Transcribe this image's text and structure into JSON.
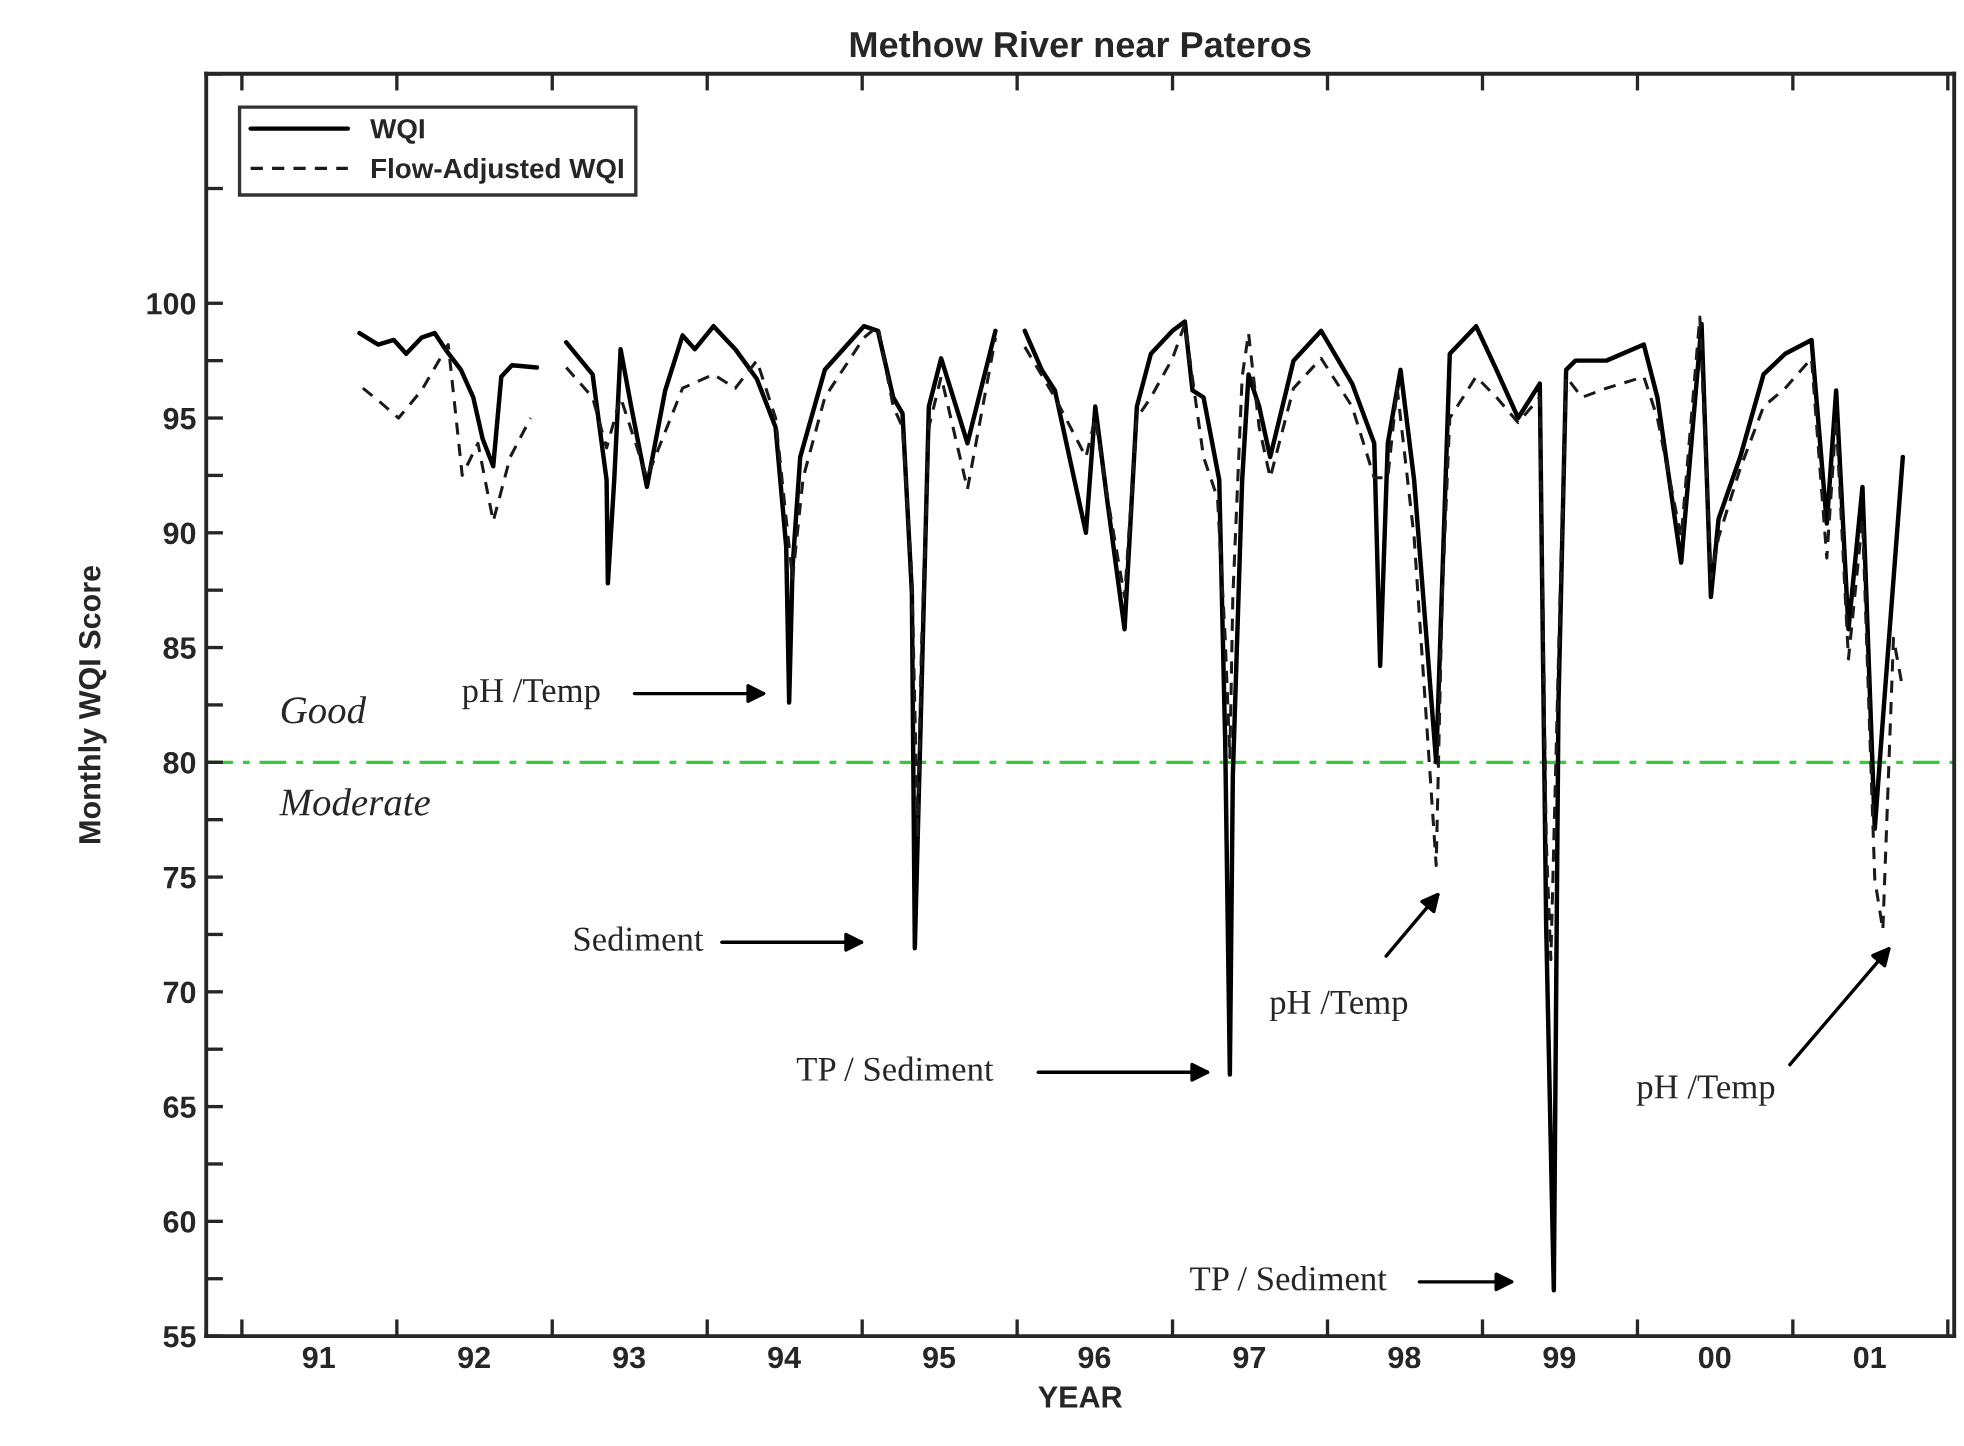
{
  "chart_data": {
    "type": "line",
    "title": "Methow River near Pateros",
    "xlabel": "YEAR",
    "ylabel": "Monthly WQI Score",
    "xlim": [
      "1990-10-09",
      "2002-01-16"
    ],
    "ylim": [
      55,
      110
    ],
    "xticks": [
      {
        "value": "1991-01-01",
        "label": null
      },
      {
        "value": "1991-07-01",
        "label": "91"
      },
      {
        "value": "1992-01-01",
        "label": null
      },
      {
        "value": "1992-07-01",
        "label": "92"
      },
      {
        "value": "1993-01-01",
        "label": null
      },
      {
        "value": "1993-07-01",
        "label": "93"
      },
      {
        "value": "1994-01-01",
        "label": null
      },
      {
        "value": "1994-07-01",
        "label": "94"
      },
      {
        "value": "1995-01-01",
        "label": null
      },
      {
        "value": "1995-07-01",
        "label": "95"
      },
      {
        "value": "1996-01-01",
        "label": null
      },
      {
        "value": "1996-07-01",
        "label": "96"
      },
      {
        "value": "1997-01-01",
        "label": null
      },
      {
        "value": "1997-07-01",
        "label": "97"
      },
      {
        "value": "1998-01-01",
        "label": null
      },
      {
        "value": "1998-07-01",
        "label": "98"
      },
      {
        "value": "1999-01-01",
        "label": null
      },
      {
        "value": "1999-07-01",
        "label": "99"
      },
      {
        "value": "2000-01-01",
        "label": null
      },
      {
        "value": "2000-07-01",
        "label": "00"
      },
      {
        "value": "2001-01-01",
        "label": null
      },
      {
        "value": "2001-07-01",
        "label": "01"
      },
      {
        "value": "2002-01-01",
        "label": null
      }
    ],
    "yticks": [
      55,
      {
        "value": 57.5,
        "label": null
      },
      60,
      {
        "value": 62.5,
        "label": null
      },
      65,
      {
        "value": 67.5,
        "label": null
      },
      70,
      {
        "value": 72.5,
        "label": null
      },
      75,
      {
        "value": 77.5,
        "label": null
      },
      80,
      {
        "value": 82.5,
        "label": null
      },
      85,
      {
        "value": 87.5,
        "label": null
      },
      90,
      {
        "value": 92.5,
        "label": null
      },
      95,
      {
        "value": 97.5,
        "label": null
      },
      100,
      {
        "value": 105,
        "label": null
      },
      {
        "value": 110,
        "label": null
      }
    ],
    "grid": false,
    "legend": "top left",
    "marker": "none",
    "ref_lines": [
      {
        "axis": "y",
        "value": 80,
        "color": "#33cc33",
        "line_style": "dashdot"
      }
    ],
    "annotations": [
      "Good",
      "Moderate",
      "pH /Temp",
      "Sediment",
      "TP / Sediment",
      "pH /Temp",
      "TP / Sediment",
      "pH /Temp"
    ],
    "series": [
      {
        "name": "WQI",
        "color": "#000000",
        "line_style": "solid",
        "x": [
          "1991-10-05",
          "1991-11-18",
          "1991-12-25",
          "1992-01-23",
          "1992-02-28",
          "1992-03-30",
          "1992-04-28",
          "1992-05-31",
          "1992-06-29",
          "1992-07-21",
          "1992-08-15",
          "1992-09-03",
          "1992-09-28",
          "1992-11-26",
          "1992-12-28",
          "1993-02-03",
          "1993-04-06",
          "1993-05-09",
          "1993-05-12",
          "1993-05-27",
          "1993-06-11",
          "1993-07-06",
          "1993-08-12",
          "1993-09-24",
          "1993-11-04",
          "1993-12-03",
          "1994-01-16",
          "1994-03-08",
          "1994-04-28",
          "1994-06-11",
          "1994-07-06",
          "1994-07-13",
          "1994-07-21",
          "1994-08-08",
          "1994-10-05",
          "1995-01-05",
          "1995-02-07",
          "1995-03-15",
          "1995-04-06",
          "1995-04-28",
          "1995-05-05",
          "1995-05-20",
          "1995-06-07",
          "1995-07-06",
          "1995-09-06",
          "1995-11-11",
          "1995-12-14",
          "1996-01-19",
          "1996-02-28",
          "1996-03-30",
          "1996-06-11",
          "1996-07-03",
          "1996-08-01",
          "1996-09-10",
          "1996-10-09",
          "1996-11-11",
          "1997-01-01",
          "1997-01-30",
          "1997-02-17",
          "1997-03-15",
          "1997-04-21",
          "1997-05-05",
          "1997-05-16",
          "1997-05-23",
          "1997-06-14",
          "1997-06-29",
          "1997-07-24",
          "1997-08-19",
          "1997-10-13",
          "1997-12-17",
          "1998-02-28",
          "1998-04-21",
          "1998-05-05",
          "1998-05-23",
          "1998-06-22",
          "1998-07-24",
          "1998-09-14",
          "1998-10-16",
          "1998-12-17",
          "1999-02-03",
          "1999-03-26",
          "1999-05-16",
          "1999-05-31",
          "1999-06-11",
          "1999-06-18",
          "1999-06-29",
          "1999-07-17",
          "1999-08-08",
          "1999-10-20",
          "2000-01-16",
          "2000-02-17",
          "2000-04-13",
          "2000-05-31",
          "2000-06-22",
          "2000-07-10",
          "2000-08-30",
          "2000-10-24",
          "2000-12-14",
          "2001-02-14",
          "2001-03-22",
          "2001-04-13",
          "2001-05-12",
          "2001-06-14",
          "2001-07-13",
          "2001-08-04",
          "2001-09-17"
        ],
        "values": [
          98.7,
          98.2,
          98.4,
          97.8,
          98.5,
          98.7,
          97.9,
          97.1,
          95.9,
          94.1,
          92.9,
          96.8,
          97.3,
          97.2,
          null,
          98.3,
          96.9,
          92.3,
          87.8,
          92.3,
          98.0,
          95.5,
          92.0,
          96.2,
          98.6,
          98.0,
          99.0,
          98.0,
          96.7,
          94.6,
          89.4,
          82.6,
          88.5,
          93.3,
          97.1,
          99.0,
          98.8,
          95.9,
          95.2,
          87.4,
          71.9,
          82.6,
          95.5,
          97.6,
          93.9,
          98.8,
          null,
          98.8,
          97.1,
          96.2,
          90.0,
          95.5,
          91.3,
          85.8,
          95.5,
          97.8,
          98.8,
          99.2,
          96.2,
          95.9,
          92.3,
          80.9,
          66.4,
          79.4,
          92.3,
          96.9,
          95.5,
          93.3,
          97.5,
          98.8,
          96.5,
          93.9,
          84.2,
          93.9,
          97.1,
          92.3,
          80.0,
          97.8,
          99.0,
          97.1,
          95.0,
          96.5,
          72.9,
          63.2,
          57.0,
          82.6,
          97.1,
          97.5,
          97.5,
          98.2,
          95.9,
          88.7,
          99.1,
          87.2,
          90.6,
          93.3,
          96.9,
          97.8,
          98.4,
          90.4,
          96.2,
          85.8,
          92.0,
          77.1,
          82.6,
          93.3
        ]
      },
      {
        "name": "Flow-Adjusted WQI",
        "color": "#1a1a1a",
        "line_style": "dashed",
        "x": [
          "1991-10-13",
          "1991-11-22",
          "1992-01-05",
          "1992-02-28",
          "1992-05-01",
          "1992-06-03",
          "1992-07-10",
          "1992-08-15",
          "1992-09-24",
          "1992-11-11",
          "1992-12-28",
          "1993-02-03",
          "1993-04-06",
          "1993-05-09",
          "1993-06-11",
          "1993-08-12",
          "1993-11-04",
          "1994-01-16",
          "1994-03-08",
          "1994-04-28",
          "1994-06-11",
          "1994-07-06",
          "1994-07-21",
          "1994-08-15",
          "1994-10-05",
          "1995-01-05",
          "1995-02-07",
          "1995-03-15",
          "1995-04-06",
          "1995-04-28",
          "1995-05-12",
          "1995-05-20",
          "1995-06-07",
          "1995-07-06",
          "1995-09-06",
          "1995-11-11",
          "1995-12-14",
          "1996-01-19",
          "1996-03-30",
          "1996-06-11",
          "1996-07-03",
          "1996-08-01",
          "1996-09-10",
          "1996-10-09",
          "1996-11-11",
          "1997-01-01",
          "1997-01-30",
          "1997-03-15",
          "1997-04-17",
          "1997-05-05",
          "1997-05-16",
          "1997-05-23",
          "1997-06-14",
          "1997-06-29",
          "1997-07-24",
          "1997-08-19",
          "1997-10-13",
          "1997-12-17",
          "1998-02-28",
          "1998-04-21",
          "1998-05-23",
          "1998-06-14",
          "1998-07-24",
          "1998-09-14",
          "1998-09-28",
          "1998-10-16",
          "1998-12-17",
          "1999-02-03",
          "1999-03-26",
          "1999-05-16",
          "1999-05-31",
          "1999-06-11",
          "1999-06-29",
          "1999-07-17",
          "1999-08-23",
          "1999-10-20",
          "2000-01-16",
          "2000-02-17",
          "2000-04-13",
          "2000-05-27",
          "2000-06-22",
          "2000-07-10",
          "2000-08-30",
          "2000-10-24",
          "2000-12-14",
          "2001-02-14",
          "2001-03-22",
          "2001-04-13",
          "2001-05-12",
          "2001-06-14",
          "2001-07-13",
          "2001-08-01",
          "2001-08-26",
          "2001-09-17"
        ],
        "values": [
          96.3,
          95.7,
          95.0,
          96.2,
          98.2,
          92.5,
          93.9,
          90.5,
          93.3,
          95.0,
          null,
          97.2,
          95.9,
          93.7,
          95.9,
          92.4,
          96.3,
          96.9,
          96.3,
          97.5,
          95.0,
          90.6,
          88.0,
          92.4,
          95.9,
          98.5,
          99.0,
          95.5,
          94.6,
          88.0,
          76.7,
          84.5,
          94.6,
          96.8,
          91.9,
          98.5,
          null,
          98.1,
          95.9,
          93.3,
          95.0,
          91.5,
          87.2,
          95.0,
          95.9,
          97.6,
          99.1,
          93.3,
          91.5,
          85.4,
          80.2,
          87.2,
          96.8,
          98.7,
          94.6,
          92.4,
          96.3,
          97.6,
          95.5,
          92.4,
          92.4,
          96.3,
          89.8,
          75.5,
          87.2,
          95.0,
          96.8,
          95.9,
          94.8,
          95.9,
          76.7,
          71.4,
          84.5,
          96.8,
          95.9,
          96.3,
          96.8,
          95.0,
          89.8,
          99.4,
          88.0,
          89.8,
          92.8,
          95.5,
          96.3,
          97.6,
          88.9,
          95.0,
          84.5,
          90.6,
          74.9,
          72.7,
          85.4,
          83.2
        ]
      }
    ]
  }
}
